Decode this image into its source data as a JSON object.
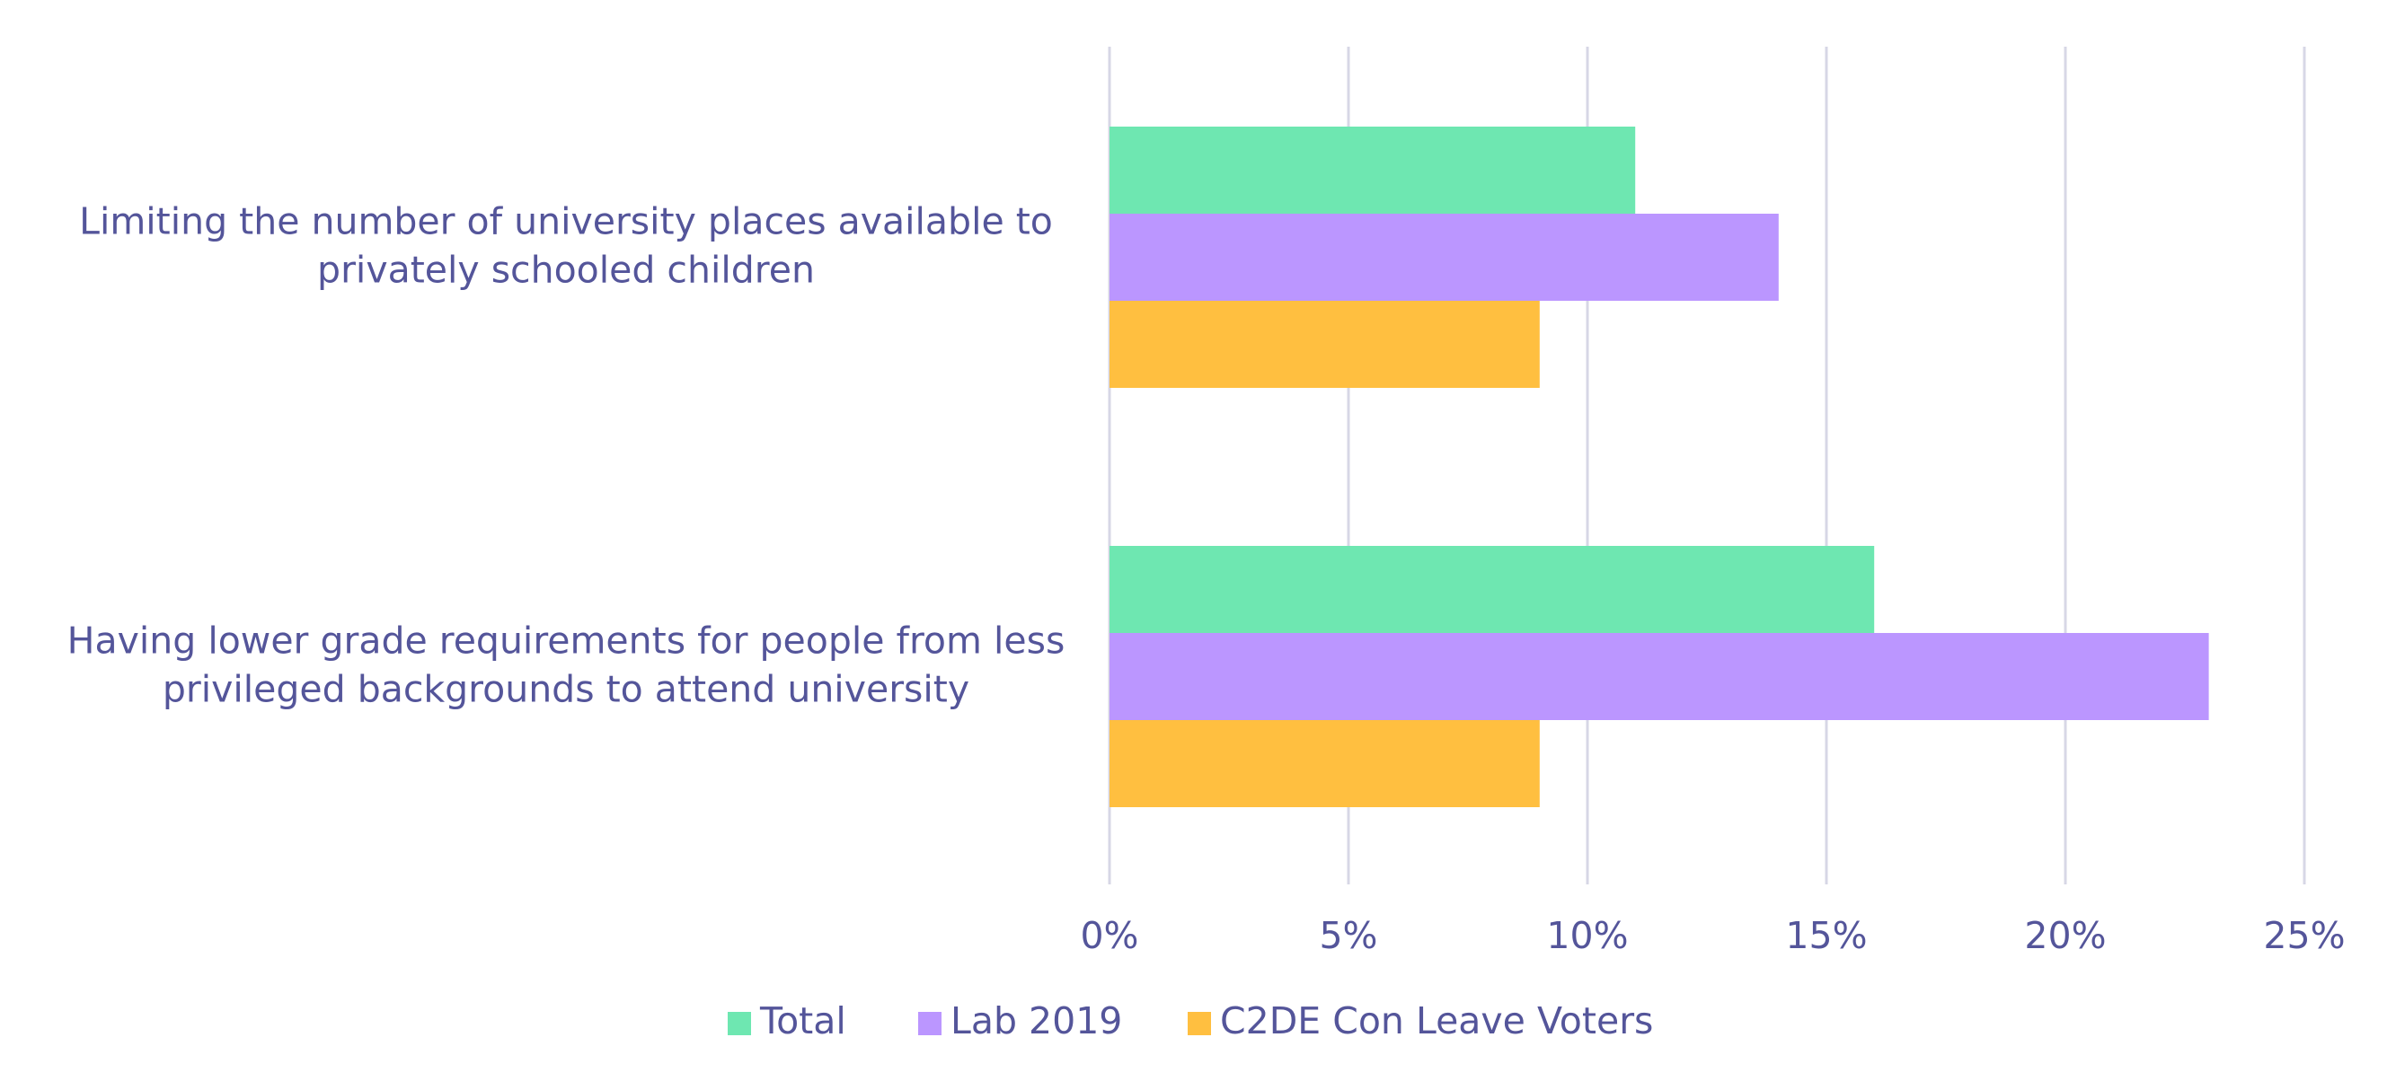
{
  "chart_data": {
    "type": "bar",
    "orientation": "horizontal",
    "title": "",
    "xlabel": "",
    "ylabel": "",
    "xlim": [
      0,
      25
    ],
    "x_ticks": [
      "0%",
      "5%",
      "10%",
      "15%",
      "20%",
      "25%"
    ],
    "x_tick_values": [
      0,
      5,
      10,
      15,
      20,
      25
    ],
    "grid": "vertical",
    "legend_position": "bottom",
    "categories": [
      {
        "lines": [
          "Limiting the number of university places available to",
          "privately schooled children"
        ],
        "label": "Limiting the number of university places available to privately schooled children"
      },
      {
        "lines": [
          "Having lower grade requirements for people from less",
          "privileged backgrounds to attend university"
        ],
        "label": "Having lower grade requirements for people from less privileged backgrounds to attend university"
      }
    ],
    "series": [
      {
        "name": "Total",
        "color": "#6ee7b1",
        "values": [
          11,
          16
        ]
      },
      {
        "name": "Lab 2019",
        "color": "#bb96ff",
        "values": [
          14,
          23
        ]
      },
      {
        "name": "C2DE Con Leave Voters",
        "color": "#ffbf40",
        "values": [
          9,
          9
        ]
      }
    ],
    "colors": {
      "text": "#54559a",
      "grid": "#d7d7e6"
    }
  }
}
